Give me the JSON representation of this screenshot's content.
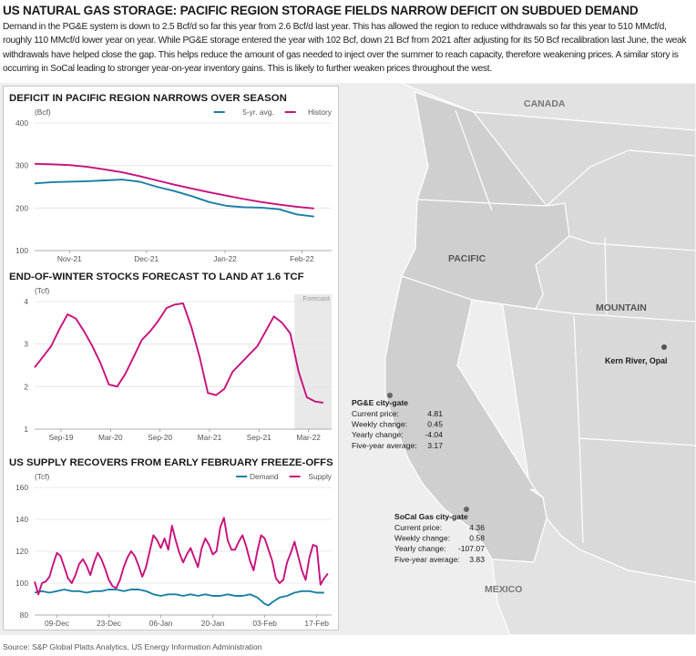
{
  "headline": "US NATURAL GAS STORAGE: PACIFIC REGION STORAGE FIELDS NARROW DEFICIT ON SUBDUED DEMAND",
  "intro": "Demand in the PG&E system is down to 2.5 Bcf/d so far this year from 2.6 Bcf/d last year. This has allowed the region to reduce withdrawals so far this year to 510 MMcf/d, roughly 110 MMcf/d lower year on year. While PG&E storage entered the year with 102 Bcf, down 21 Bcf from 2021 after adjusting for its 50 Bcf recalibration last June, the weak withdrawals have helped close the gap. This helps reduce the amount of gas needed to inject over the summer to reach capacity, therefore weakening prices. A similar story is occurring in SoCal leading to stronger year-on-year inventory gains. This is likely to further weaken prices throughout the west.",
  "source": "Source: S&P Global Platts Analytics, US Energy Information Administration",
  "colors": {
    "teal": "#1a7fa6",
    "magenta": "#c8107c",
    "map_bg": "#eeeeee",
    "pacific_fill": "#cfcfcf",
    "land_fill": "#d9d9d9",
    "forecast_shade": "#e9e9e9"
  },
  "map": {
    "labels": {
      "canada": "CANADA",
      "pacific": "PACIFIC",
      "mountain": "MOUNTAIN",
      "mexico": "MEXICO"
    },
    "kern": {
      "name": "Kern River, Opal"
    },
    "pge": {
      "title": "PG&E city-gate",
      "rows": [
        {
          "label": "Current price:",
          "value": "4.81"
        },
        {
          "label": "Weekly change:",
          "value": "0.45"
        },
        {
          "label": "Yearly change:",
          "value": "-4.04"
        },
        {
          "label": "Five-year average:",
          "value": "3.17"
        }
      ]
    },
    "socal": {
      "title": "SoCal Gas city-gate",
      "rows": [
        {
          "label": "Current price:",
          "value": "4.36"
        },
        {
          "label": "Weekly change:",
          "value": "0.58"
        },
        {
          "label": "Yearly change:",
          "value": "-107.07"
        },
        {
          "label": "Five-year average:",
          "value": "3.83"
        }
      ]
    }
  },
  "chart_data": [
    {
      "type": "line",
      "title": "DEFICIT IN PACIFIC REGION NARROWS OVER SEASON",
      "unit": "(Bcf)",
      "ylim": [
        100,
        400
      ],
      "yticks": [
        100,
        200,
        300,
        400
      ],
      "xlim": [
        0,
        17
      ],
      "xticks": [
        {
          "x": 2,
          "label": "Nov-21"
        },
        {
          "x": 6.4,
          "label": "Dec-21"
        },
        {
          "x": 10.9,
          "label": "Jan-22"
        },
        {
          "x": 15.3,
          "label": "Feb-22"
        }
      ],
      "legend": "top-right",
      "grid": true,
      "series": [
        {
          "name": "5-yr. avg.",
          "color": "#1a7fa6",
          "x": [
            0,
            1,
            2,
            3,
            4,
            5,
            6,
            7,
            8,
            9,
            10,
            11,
            12,
            13,
            14,
            15,
            16
          ],
          "values": [
            258,
            261,
            262,
            263,
            265,
            267,
            262,
            250,
            240,
            228,
            214,
            205,
            202,
            201,
            197,
            185,
            180
          ]
        },
        {
          "name": "History",
          "color": "#c8107c",
          "x": [
            0,
            1,
            2,
            3,
            4,
            5,
            6,
            7,
            8,
            9,
            10,
            11,
            12,
            13,
            14,
            15,
            16
          ],
          "values": [
            304,
            303,
            301,
            297,
            291,
            284,
            275,
            265,
            255,
            246,
            237,
            229,
            221,
            214,
            208,
            203,
            199
          ]
        }
      ]
    },
    {
      "type": "line",
      "title": "END-OF-WINTER STOCKS FORECAST TO LAND AT 1.6 TCF",
      "unit": "(Tcf)",
      "ylim": [
        1,
        4
      ],
      "yticks": [
        1,
        2,
        3,
        4
      ],
      "xlim": [
        0,
        36
      ],
      "xticks": [
        {
          "x": 3.2,
          "label": "Sep-19"
        },
        {
          "x": 9.2,
          "label": "Mar-20"
        },
        {
          "x": 15.2,
          "label": "Sep-20"
        },
        {
          "x": 21.2,
          "label": "Mar-21"
        },
        {
          "x": 27.2,
          "label": "Sep-21"
        },
        {
          "x": 33.2,
          "label": "Mar-22"
        }
      ],
      "forecast_label": "Forecast",
      "forecast_start": 31.5,
      "legend": "none",
      "grid": true,
      "series": [
        {
          "name": "",
          "color": "#c8107c",
          "x": [
            0,
            1,
            2,
            3,
            4,
            5,
            6,
            7,
            8,
            9,
            10,
            11,
            12,
            13,
            14,
            15,
            16,
            17,
            18,
            19,
            20,
            21,
            22,
            23,
            24,
            25,
            26,
            27,
            28,
            29,
            30,
            31,
            32,
            33,
            34,
            35
          ],
          "values": [
            2.45,
            2.7,
            2.95,
            3.35,
            3.7,
            3.6,
            3.3,
            2.95,
            2.55,
            2.05,
            2.0,
            2.3,
            2.7,
            3.1,
            3.3,
            3.55,
            3.85,
            3.93,
            3.96,
            3.4,
            2.7,
            1.85,
            1.8,
            1.95,
            2.35,
            2.55,
            2.75,
            2.95,
            3.3,
            3.65,
            3.5,
            3.25,
            2.35,
            1.75,
            1.65,
            1.62
          ]
        }
      ]
    },
    {
      "type": "line",
      "title": "US SUPPLY RECOVERS FROM EARLY FEBRUARY FREEZE-OFFS",
      "unit": "(Tcf)",
      "ylim": [
        80,
        160
      ],
      "yticks": [
        80,
        100,
        120,
        140,
        160
      ],
      "xlim": [
        0,
        80
      ],
      "xticks": [
        {
          "x": 6,
          "label": "09-Dec"
        },
        {
          "x": 20,
          "label": "23-Dec"
        },
        {
          "x": 34,
          "label": "06-Jan"
        },
        {
          "x": 48,
          "label": "20-Jan"
        },
        {
          "x": 62,
          "label": "03-Feb"
        },
        {
          "x": 76,
          "label": "17-Feb"
        }
      ],
      "legend": "top-right",
      "grid": true,
      "series": [
        {
          "name": "Demand",
          "color": "#1a7fa6",
          "x": [
            0,
            2,
            4,
            6,
            8,
            10,
            12,
            14,
            16,
            18,
            20,
            22,
            24,
            26,
            28,
            30,
            32,
            34,
            36,
            38,
            40,
            42,
            44,
            46,
            48,
            50,
            52,
            54,
            56,
            58,
            60,
            62,
            63,
            64,
            66,
            68,
            70,
            72,
            74,
            76,
            78
          ],
          "values": [
            94,
            95,
            94,
            95,
            96,
            95,
            95,
            94,
            95,
            95,
            96,
            96,
            95,
            96,
            96,
            95,
            93,
            92,
            93,
            93,
            92,
            93,
            92,
            93,
            92,
            92,
            93,
            92,
            92,
            93,
            91,
            87,
            86,
            88,
            91,
            92,
            94,
            95,
            95,
            94,
            94
          ]
        },
        {
          "name": "Supply",
          "color": "#c8107c",
          "x": [
            0,
            1,
            2,
            3,
            4,
            5,
            6,
            7,
            8,
            9,
            10,
            11,
            12,
            13,
            14,
            15,
            16,
            17,
            18,
            19,
            20,
            21,
            22,
            23,
            24,
            25,
            26,
            27,
            28,
            29,
            30,
            31,
            32,
            33,
            34,
            35,
            36,
            37,
            38,
            39,
            40,
            41,
            42,
            43,
            44,
            45,
            46,
            47,
            48,
            49,
            50,
            51,
            52,
            53,
            54,
            55,
            56,
            57,
            58,
            59,
            60,
            61,
            62,
            63,
            64,
            65,
            66,
            67,
            68,
            69,
            70,
            71,
            72,
            73,
            74,
            75,
            76,
            77,
            78,
            79
          ],
          "values": [
            101,
            93,
            100,
            101,
            104,
            112,
            119,
            117,
            110,
            103,
            100,
            105,
            112,
            115,
            111,
            105,
            113,
            119,
            115,
            109,
            102,
            98,
            97,
            102,
            110,
            116,
            120,
            117,
            111,
            104,
            110,
            120,
            130,
            127,
            122,
            128,
            121,
            136,
            127,
            119,
            113,
            118,
            122,
            116,
            110,
            122,
            128,
            124,
            118,
            120,
            135,
            141,
            127,
            121,
            121,
            126,
            130,
            123,
            114,
            108,
            120,
            130,
            128,
            121,
            114,
            103,
            100,
            102,
            113,
            119,
            126,
            117,
            108,
            102,
            116,
            124,
            123,
            99,
            103,
            106
          ]
        }
      ]
    }
  ]
}
